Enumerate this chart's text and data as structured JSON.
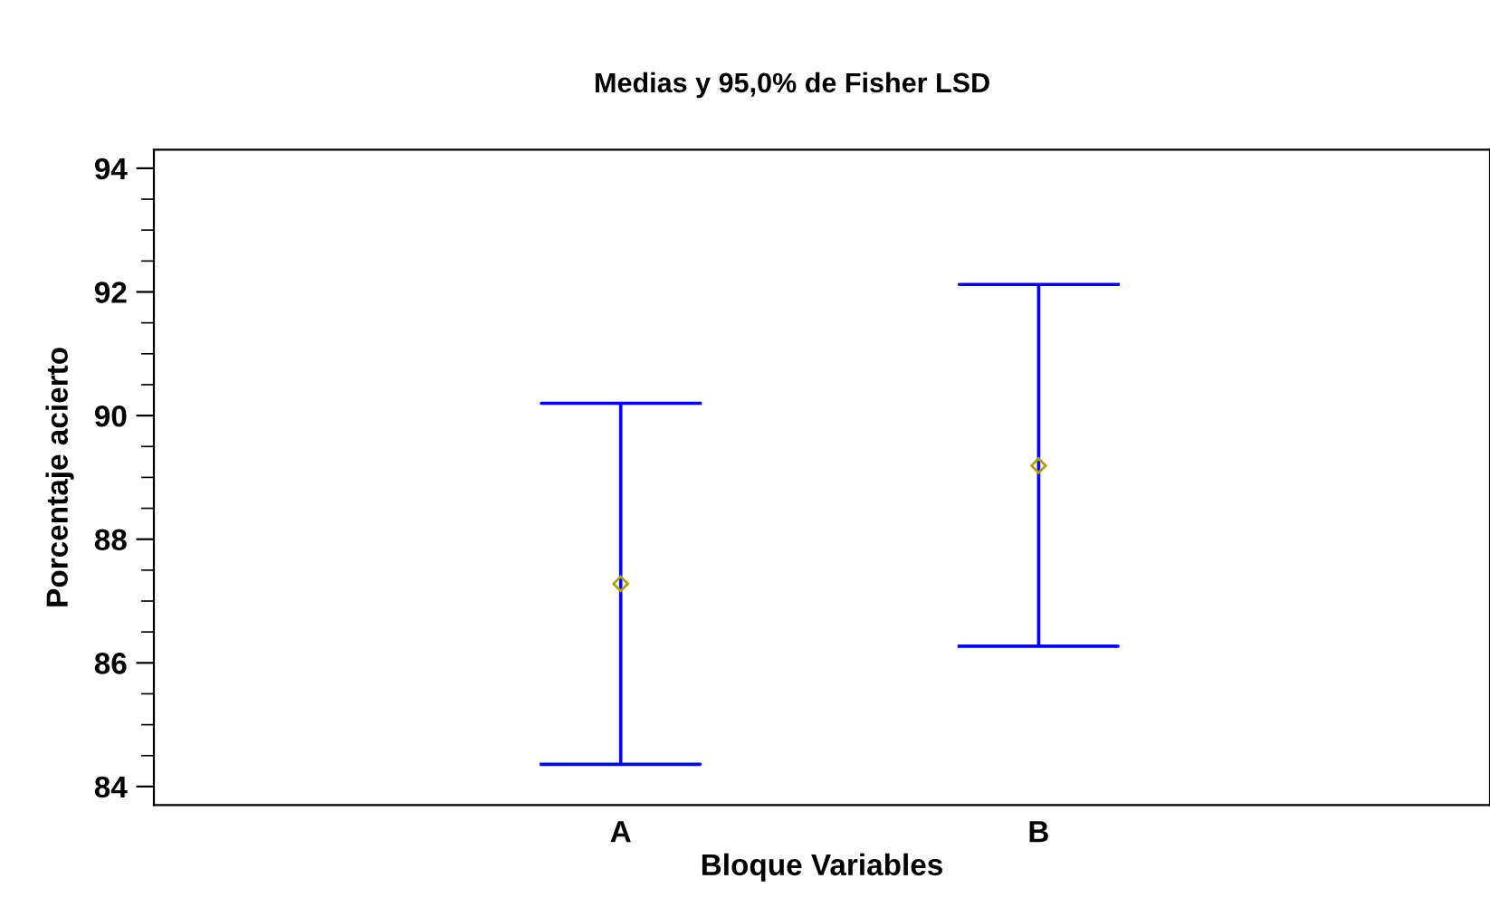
{
  "chart_data": {
    "type": "scatter",
    "title": "Medias y 95,0% de Fisher LSD",
    "xlabel": "Bloque Variables",
    "ylabel": "Porcentaje acierto",
    "categories": [
      "A",
      "B"
    ],
    "series": [
      {
        "color": "#b0a000",
        "values": [
          87.28,
          89.19
        ],
        "errors": [
          [
            84.36,
            90.2
          ],
          [
            86.27,
            92.12
          ]
        ]
      }
    ],
    "marker": "diamond",
    "grid": false,
    "ylim": [
      83.7,
      94.3
    ],
    "yticks": [
      84,
      86,
      88,
      90,
      92,
      94
    ]
  }
}
